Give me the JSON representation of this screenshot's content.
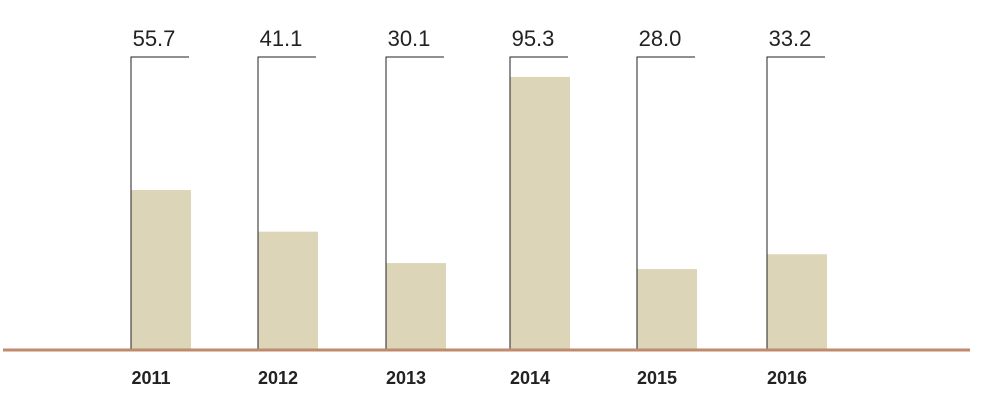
{
  "chart_data": {
    "type": "bar",
    "categories": [
      "2011",
      "2012",
      "2013",
      "2014",
      "2015",
      "2016"
    ],
    "values": [
      55.7,
      41.1,
      30.1,
      95.3,
      28.0,
      33.2
    ],
    "value_labels": [
      "55.7",
      "41.1",
      "30.1",
      "95.3",
      "28.0",
      "33.2"
    ],
    "color": "#ddd5b8",
    "ylim": [
      0,
      100
    ]
  }
}
